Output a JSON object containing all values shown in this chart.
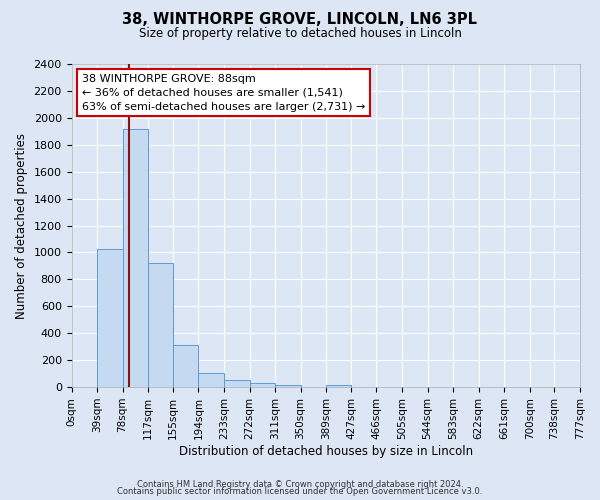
{
  "title": "38, WINTHORPE GROVE, LINCOLN, LN6 3PL",
  "subtitle": "Size of property relative to detached houses in Lincoln",
  "xlabel": "Distribution of detached houses by size in Lincoln",
  "ylabel": "Number of detached properties",
  "bar_color": "#c5d9f0",
  "bar_edge_color": "#5b9bd5",
  "background_color": "#dce6f5",
  "grid_color": "#ffffff",
  "bin_edges": [
    0,
    39,
    78,
    117,
    155,
    194,
    233,
    272,
    311,
    350,
    389,
    427,
    466,
    505,
    544,
    583,
    622,
    661,
    700,
    738,
    777
  ],
  "bin_labels": [
    "0sqm",
    "39sqm",
    "78sqm",
    "117sqm",
    "155sqm",
    "194sqm",
    "233sqm",
    "272sqm",
    "311sqm",
    "350sqm",
    "389sqm",
    "427sqm",
    "466sqm",
    "505sqm",
    "544sqm",
    "583sqm",
    "622sqm",
    "661sqm",
    "700sqm",
    "738sqm",
    "777sqm"
  ],
  "counts": [
    0,
    1025,
    1920,
    920,
    315,
    105,
    50,
    28,
    14,
    0,
    12,
    0,
    0,
    0,
    0,
    0,
    0,
    0,
    0,
    0
  ],
  "property_size": 88,
  "property_line_color": "#8b1010",
  "annotation_box_color": "#ffffff",
  "annotation_box_edge": "#cc0000",
  "annotation_text_line1": "38 WINTHORPE GROVE: 88sqm",
  "annotation_text_line2": "← 36% of detached houses are smaller (1,541)",
  "annotation_text_line3": "63% of semi-detached houses are larger (2,731) →",
  "ylim": [
    0,
    2400
  ],
  "yticks": [
    0,
    200,
    400,
    600,
    800,
    1000,
    1200,
    1400,
    1600,
    1800,
    2000,
    2200,
    2400
  ],
  "footer_line1": "Contains HM Land Registry data © Crown copyright and database right 2024.",
  "footer_line2": "Contains public sector information licensed under the Open Government Licence v3.0."
}
